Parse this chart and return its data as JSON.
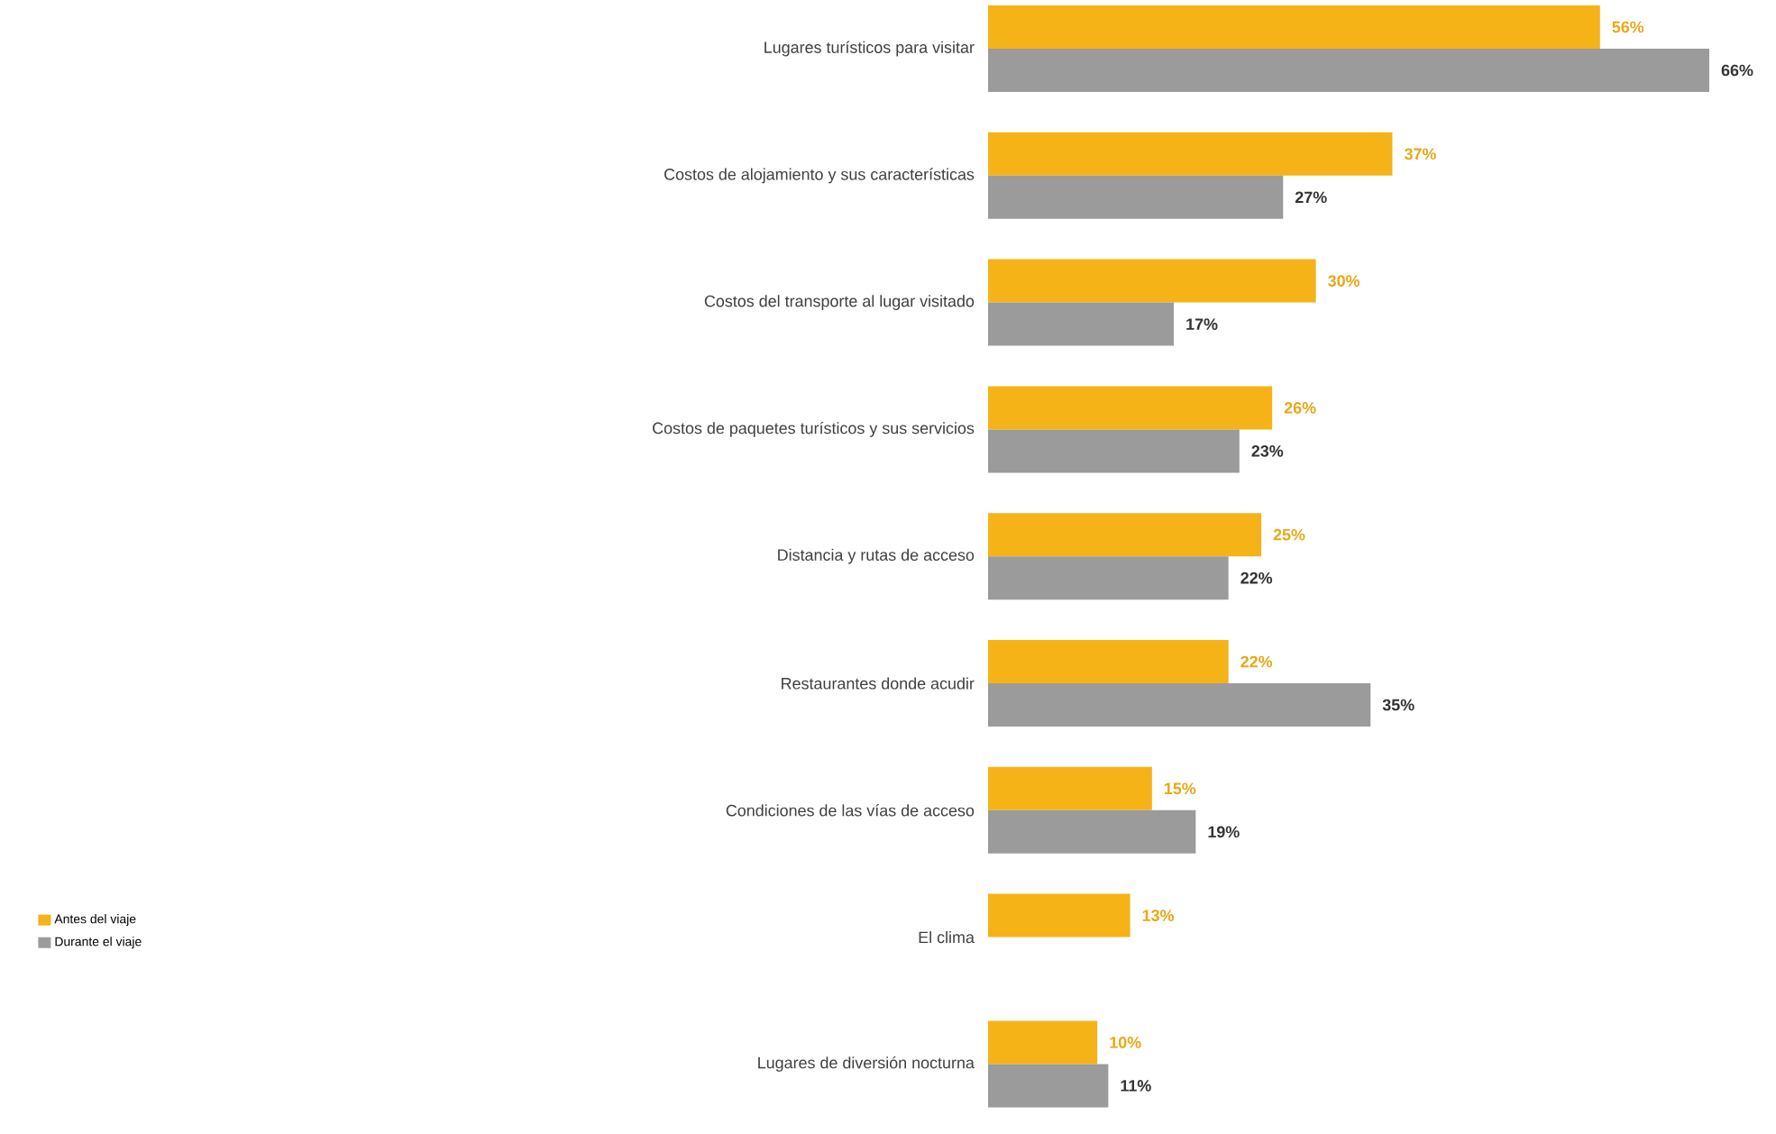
{
  "chart_data": {
    "type": "bar",
    "orientation": "horizontal",
    "categories": [
      "Lugares turísticos para visitar",
      "Costos de alojamiento y sus características",
      "Costos del transporte al lugar visitado",
      "Costos de paquetes turísticos y sus servicios",
      "Distancia y rutas de acceso",
      "Restaurantes donde acudir",
      "Condiciones de las vías de acceso",
      "El clima",
      "Lugares de diversión nocturna"
    ],
    "series": [
      {
        "name": "Antes del viaje",
        "color": "#f5b317",
        "values": [
          56,
          37,
          30,
          26,
          25,
          22,
          15,
          13,
          10
        ],
        "value_labels": [
          "56%",
          "37%",
          "30%",
          "26%",
          "25%",
          "22%",
          "15%",
          "13%",
          "10%"
        ]
      },
      {
        "name": "Durante el viaje",
        "color": "#9b9b9b",
        "values": [
          66,
          27,
          17,
          23,
          22,
          35,
          19,
          null,
          11
        ],
        "value_labels": [
          "66%",
          "27%",
          "17%",
          "23%",
          "22%",
          "35%",
          "19%",
          null,
          "11%"
        ]
      }
    ],
    "legend": "left"
  }
}
